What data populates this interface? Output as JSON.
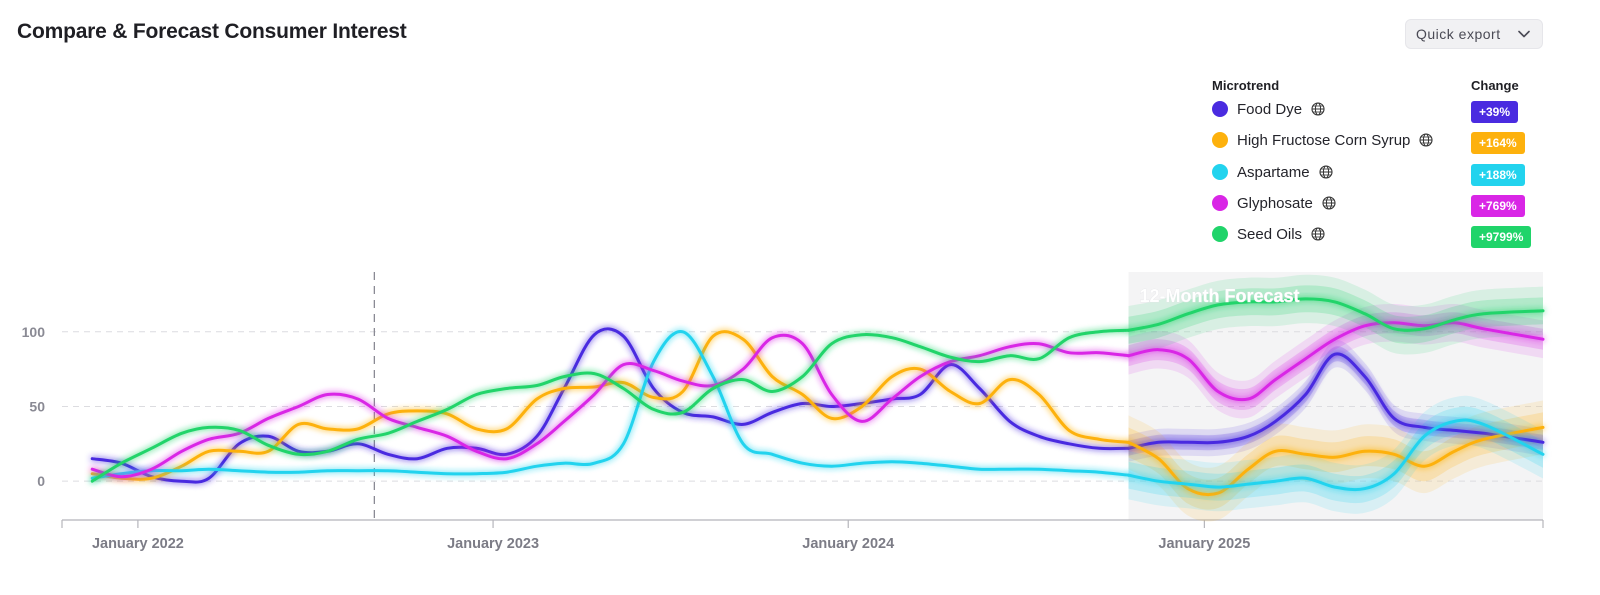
{
  "header": {
    "title": "Compare & Forecast Consumer Interest",
    "export_label": "Quick export"
  },
  "legend": {
    "trend_header": "Microtrend",
    "change_header": "Change",
    "items": [
      {
        "label": "Food Dye",
        "change": "+39%",
        "color": "#4a2be0",
        "icon": "globe-icon"
      },
      {
        "label": "High Fructose Corn Syrup",
        "change": "+164%",
        "color": "#fdb10d",
        "icon": "globe-icon"
      },
      {
        "label": "Aspartame",
        "change": "+188%",
        "color": "#22d3ee",
        "icon": "globe-icon"
      },
      {
        "label": "Glyphosate",
        "change": "+769%",
        "color": "#d926e6",
        "icon": "globe-icon"
      },
      {
        "label": "Seed Oils",
        "change": "+9799%",
        "color": "#20d46a",
        "icon": "globe-icon"
      }
    ]
  },
  "chart_data": {
    "type": "line",
    "title": "",
    "xlabel": "",
    "ylabel": "",
    "x_ticks": [
      "January 2022",
      "January 2023",
      "January 2024",
      "January 2025"
    ],
    "y_ticks": [
      0,
      50,
      100
    ],
    "ylim": [
      -26,
      140
    ],
    "xlim": [
      "2021-10-15",
      "2025-12-15"
    ],
    "grid": "horizontal dashed",
    "legend_position": "top-right",
    "forecast": {
      "label": "12-Month Forecast",
      "start": "2024-10-15",
      "end": "2025-12-15"
    },
    "reference_line": "2022-09-01",
    "series": [
      {
        "name": "Food Dye",
        "color": "#4a2be0",
        "points": [
          [
            "2021-11-15",
            15
          ],
          [
            "2021-12-15",
            12
          ],
          [
            "2022-01-15",
            3
          ],
          [
            "2022-02-15",
            0
          ],
          [
            "2022-03-15",
            2
          ],
          [
            "2022-04-15",
            25
          ],
          [
            "2022-05-15",
            30
          ],
          [
            "2022-06-15",
            20
          ],
          [
            "2022-07-15",
            20
          ],
          [
            "2022-08-15",
            25
          ],
          [
            "2022-09-15",
            18
          ],
          [
            "2022-10-15",
            15
          ],
          [
            "2022-11-15",
            22
          ],
          [
            "2022-12-15",
            22
          ],
          [
            "2023-01-15",
            18
          ],
          [
            "2023-02-15",
            30
          ],
          [
            "2023-03-15",
            62
          ],
          [
            "2023-04-15",
            98
          ],
          [
            "2023-05-15",
            97
          ],
          [
            "2023-06-15",
            62
          ],
          [
            "2023-07-15",
            46
          ],
          [
            "2023-08-15",
            43
          ],
          [
            "2023-09-15",
            38
          ],
          [
            "2023-10-15",
            46
          ],
          [
            "2023-11-15",
            52
          ],
          [
            "2023-12-15",
            50
          ],
          [
            "2024-01-15",
            52
          ],
          [
            "2024-02-15",
            55
          ],
          [
            "2024-03-15",
            58
          ],
          [
            "2024-04-15",
            78
          ],
          [
            "2024-05-15",
            62
          ],
          [
            "2024-06-15",
            40
          ],
          [
            "2024-07-15",
            30
          ],
          [
            "2024-08-15",
            25
          ],
          [
            "2024-09-15",
            22
          ],
          [
            "2024-10-15",
            22
          ],
          [
            "2024-11-15",
            26
          ],
          [
            "2024-12-15",
            26
          ],
          [
            "2025-01-15",
            26
          ],
          [
            "2025-02-15",
            30
          ],
          [
            "2025-03-15",
            40
          ],
          [
            "2025-04-15",
            58
          ],
          [
            "2025-05-15",
            85
          ],
          [
            "2025-06-15",
            70
          ],
          [
            "2025-07-15",
            42
          ],
          [
            "2025-08-15",
            36
          ],
          [
            "2025-09-15",
            34
          ],
          [
            "2025-10-15",
            32
          ],
          [
            "2025-12-15",
            26
          ]
        ],
        "forecast_band": 5
      },
      {
        "name": "High Fructose Corn Syrup",
        "color": "#fdb10d",
        "points": [
          [
            "2021-11-15",
            5
          ],
          [
            "2021-12-15",
            2
          ],
          [
            "2022-01-15",
            2
          ],
          [
            "2022-02-15",
            10
          ],
          [
            "2022-03-15",
            20
          ],
          [
            "2022-04-15",
            20
          ],
          [
            "2022-05-15",
            20
          ],
          [
            "2022-06-15",
            38
          ],
          [
            "2022-07-15",
            35
          ],
          [
            "2022-08-15",
            35
          ],
          [
            "2022-09-15",
            45
          ],
          [
            "2022-10-15",
            47
          ],
          [
            "2022-11-15",
            45
          ],
          [
            "2022-12-15",
            35
          ],
          [
            "2023-01-15",
            35
          ],
          [
            "2023-02-15",
            55
          ],
          [
            "2023-03-15",
            62
          ],
          [
            "2023-04-15",
            63
          ],
          [
            "2023-05-15",
            66
          ],
          [
            "2023-06-15",
            56
          ],
          [
            "2023-07-15",
            60
          ],
          [
            "2023-08-15",
            97
          ],
          [
            "2023-09-15",
            95
          ],
          [
            "2023-10-15",
            70
          ],
          [
            "2023-11-15",
            58
          ],
          [
            "2023-12-15",
            42
          ],
          [
            "2024-01-15",
            50
          ],
          [
            "2024-02-15",
            70
          ],
          [
            "2024-03-15",
            75
          ],
          [
            "2024-04-15",
            60
          ],
          [
            "2024-05-15",
            52
          ],
          [
            "2024-06-15",
            68
          ],
          [
            "2024-07-15",
            58
          ],
          [
            "2024-08-15",
            34
          ],
          [
            "2024-09-15",
            28
          ],
          [
            "2024-10-15",
            26
          ],
          [
            "2024-11-15",
            15
          ],
          [
            "2024-12-15",
            -5
          ],
          [
            "2025-01-15",
            -8
          ],
          [
            "2025-02-15",
            8
          ],
          [
            "2025-03-15",
            20
          ],
          [
            "2025-04-15",
            18
          ],
          [
            "2025-05-15",
            16
          ],
          [
            "2025-06-15",
            20
          ],
          [
            "2025-07-15",
            18
          ],
          [
            "2025-08-15",
            10
          ],
          [
            "2025-09-15",
            20
          ],
          [
            "2025-10-15",
            28
          ],
          [
            "2025-12-15",
            36
          ]
        ],
        "forecast_band": 10
      },
      {
        "name": "Aspartame",
        "color": "#22d3ee",
        "points": [
          [
            "2021-11-15",
            2
          ],
          [
            "2021-12-15",
            5
          ],
          [
            "2022-01-15",
            7
          ],
          [
            "2022-02-15",
            7
          ],
          [
            "2022-03-15",
            8
          ],
          [
            "2022-04-15",
            7
          ],
          [
            "2022-05-15",
            6
          ],
          [
            "2022-06-15",
            6
          ],
          [
            "2022-07-15",
            7
          ],
          [
            "2022-08-15",
            7
          ],
          [
            "2022-09-15",
            7
          ],
          [
            "2022-10-15",
            6
          ],
          [
            "2022-11-15",
            5
          ],
          [
            "2022-12-15",
            5
          ],
          [
            "2023-01-15",
            6
          ],
          [
            "2023-02-15",
            10
          ],
          [
            "2023-03-15",
            12
          ],
          [
            "2023-04-15",
            12
          ],
          [
            "2023-05-15",
            25
          ],
          [
            "2023-06-15",
            80
          ],
          [
            "2023-07-15",
            100
          ],
          [
            "2023-08-15",
            70
          ],
          [
            "2023-09-15",
            25
          ],
          [
            "2023-10-15",
            18
          ],
          [
            "2023-11-15",
            12
          ],
          [
            "2023-12-15",
            10
          ],
          [
            "2024-01-15",
            12
          ],
          [
            "2024-02-15",
            13
          ],
          [
            "2024-03-15",
            12
          ],
          [
            "2024-04-15",
            10
          ],
          [
            "2024-05-15",
            8
          ],
          [
            "2024-06-15",
            8
          ],
          [
            "2024-07-15",
            8
          ],
          [
            "2024-08-15",
            7
          ],
          [
            "2024-09-15",
            6
          ],
          [
            "2024-10-15",
            4
          ],
          [
            "2024-11-15",
            0
          ],
          [
            "2024-12-15",
            -2
          ],
          [
            "2025-01-15",
            -4
          ],
          [
            "2025-02-15",
            -2
          ],
          [
            "2025-03-15",
            0
          ],
          [
            "2025-04-15",
            2
          ],
          [
            "2025-05-15",
            -4
          ],
          [
            "2025-06-15",
            -5
          ],
          [
            "2025-07-15",
            5
          ],
          [
            "2025-08-15",
            30
          ],
          [
            "2025-09-15",
            40
          ],
          [
            "2025-10-15",
            38
          ],
          [
            "2025-12-15",
            18
          ]
        ],
        "forecast_band": 9
      },
      {
        "name": "Glyphosate",
        "color": "#d926e6",
        "points": [
          [
            "2021-11-15",
            8
          ],
          [
            "2021-12-15",
            3
          ],
          [
            "2022-01-15",
            8
          ],
          [
            "2022-02-15",
            20
          ],
          [
            "2022-03-15",
            28
          ],
          [
            "2022-04-15",
            32
          ],
          [
            "2022-05-15",
            42
          ],
          [
            "2022-06-15",
            50
          ],
          [
            "2022-07-15",
            58
          ],
          [
            "2022-08-15",
            55
          ],
          [
            "2022-09-15",
            42
          ],
          [
            "2022-10-15",
            36
          ],
          [
            "2022-11-15",
            30
          ],
          [
            "2022-12-15",
            20
          ],
          [
            "2023-01-15",
            15
          ],
          [
            "2023-02-15",
            25
          ],
          [
            "2023-03-15",
            40
          ],
          [
            "2023-04-15",
            58
          ],
          [
            "2023-05-15",
            78
          ],
          [
            "2023-06-15",
            74
          ],
          [
            "2023-07-15",
            67
          ],
          [
            "2023-08-15",
            64
          ],
          [
            "2023-09-15",
            75
          ],
          [
            "2023-10-15",
            96
          ],
          [
            "2023-11-15",
            92
          ],
          [
            "2023-12-15",
            58
          ],
          [
            "2024-01-15",
            40
          ],
          [
            "2024-02-15",
            55
          ],
          [
            "2024-03-15",
            70
          ],
          [
            "2024-04-15",
            80
          ],
          [
            "2024-05-15",
            84
          ],
          [
            "2024-06-15",
            90
          ],
          [
            "2024-07-15",
            92
          ],
          [
            "2024-08-15",
            86
          ],
          [
            "2024-09-15",
            86
          ],
          [
            "2024-10-15",
            84
          ],
          [
            "2024-11-15",
            88
          ],
          [
            "2024-12-15",
            82
          ],
          [
            "2025-01-15",
            60
          ],
          [
            "2025-02-15",
            55
          ],
          [
            "2025-03-15",
            68
          ],
          [
            "2025-04-15",
            82
          ],
          [
            "2025-05-15",
            95
          ],
          [
            "2025-06-15",
            104
          ],
          [
            "2025-07-15",
            106
          ],
          [
            "2025-08-15",
            104
          ],
          [
            "2025-09-15",
            106
          ],
          [
            "2025-10-15",
            102
          ],
          [
            "2025-12-15",
            95
          ]
        ],
        "forecast_band": 7
      },
      {
        "name": "Seed Oils",
        "color": "#20d46a",
        "points": [
          [
            "2021-11-15",
            0
          ],
          [
            "2021-12-15",
            12
          ],
          [
            "2022-01-15",
            22
          ],
          [
            "2022-02-15",
            32
          ],
          [
            "2022-03-15",
            36
          ],
          [
            "2022-04-15",
            34
          ],
          [
            "2022-05-15",
            24
          ],
          [
            "2022-06-15",
            18
          ],
          [
            "2022-07-15",
            20
          ],
          [
            "2022-08-15",
            28
          ],
          [
            "2022-09-15",
            32
          ],
          [
            "2022-10-15",
            40
          ],
          [
            "2022-11-15",
            48
          ],
          [
            "2022-12-15",
            58
          ],
          [
            "2023-01-15",
            62
          ],
          [
            "2023-02-15",
            64
          ],
          [
            "2023-03-15",
            70
          ],
          [
            "2023-04-15",
            72
          ],
          [
            "2023-05-15",
            62
          ],
          [
            "2023-06-15",
            48
          ],
          [
            "2023-07-15",
            46
          ],
          [
            "2023-08-15",
            62
          ],
          [
            "2023-09-15",
            68
          ],
          [
            "2023-10-15",
            60
          ],
          [
            "2023-11-15",
            70
          ],
          [
            "2023-12-15",
            92
          ],
          [
            "2024-01-15",
            98
          ],
          [
            "2024-02-15",
            96
          ],
          [
            "2024-03-15",
            90
          ],
          [
            "2024-04-15",
            83
          ],
          [
            "2024-05-15",
            80
          ],
          [
            "2024-06-15",
            84
          ],
          [
            "2024-07-15",
            82
          ],
          [
            "2024-08-15",
            96
          ],
          [
            "2024-09-15",
            100
          ],
          [
            "2024-10-15",
            101
          ],
          [
            "2024-11-15",
            105
          ],
          [
            "2024-12-15",
            112
          ],
          [
            "2025-01-15",
            118
          ],
          [
            "2025-02-15",
            120
          ],
          [
            "2025-03-15",
            120
          ],
          [
            "2025-04-15",
            122
          ],
          [
            "2025-05-15",
            120
          ],
          [
            "2025-06-15",
            112
          ],
          [
            "2025-07-15",
            102
          ],
          [
            "2025-08-15",
            102
          ],
          [
            "2025-09-15",
            108
          ],
          [
            "2025-10-15",
            112
          ],
          [
            "2025-12-15",
            114
          ]
        ],
        "forecast_band": 9
      }
    ]
  }
}
